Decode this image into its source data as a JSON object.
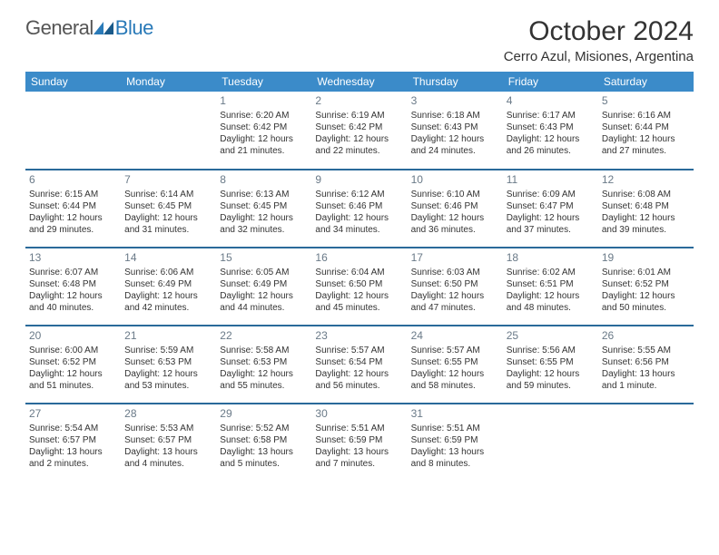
{
  "logo": {
    "text_general": "General",
    "text_blue": "Blue"
  },
  "header": {
    "month_title": "October 2024",
    "location": "Cerro Azul, Misiones, Argentina"
  },
  "colors": {
    "header_bg": "#3b8bc9",
    "row_divider": "#2a6a9a",
    "daynum": "#6a7a88",
    "text": "#333333",
    "logo_gray": "#555555",
    "logo_blue": "#2a7ab8"
  },
  "day_headers": [
    "Sunday",
    "Monday",
    "Tuesday",
    "Wednesday",
    "Thursday",
    "Friday",
    "Saturday"
  ],
  "weeks": [
    [
      null,
      null,
      {
        "n": "1",
        "sr": "Sunrise: 6:20 AM",
        "ss": "Sunset: 6:42 PM",
        "d1": "Daylight: 12 hours",
        "d2": "and 21 minutes."
      },
      {
        "n": "2",
        "sr": "Sunrise: 6:19 AM",
        "ss": "Sunset: 6:42 PM",
        "d1": "Daylight: 12 hours",
        "d2": "and 22 minutes."
      },
      {
        "n": "3",
        "sr": "Sunrise: 6:18 AM",
        "ss": "Sunset: 6:43 PM",
        "d1": "Daylight: 12 hours",
        "d2": "and 24 minutes."
      },
      {
        "n": "4",
        "sr": "Sunrise: 6:17 AM",
        "ss": "Sunset: 6:43 PM",
        "d1": "Daylight: 12 hours",
        "d2": "and 26 minutes."
      },
      {
        "n": "5",
        "sr": "Sunrise: 6:16 AM",
        "ss": "Sunset: 6:44 PM",
        "d1": "Daylight: 12 hours",
        "d2": "and 27 minutes."
      }
    ],
    [
      {
        "n": "6",
        "sr": "Sunrise: 6:15 AM",
        "ss": "Sunset: 6:44 PM",
        "d1": "Daylight: 12 hours",
        "d2": "and 29 minutes."
      },
      {
        "n": "7",
        "sr": "Sunrise: 6:14 AM",
        "ss": "Sunset: 6:45 PM",
        "d1": "Daylight: 12 hours",
        "d2": "and 31 minutes."
      },
      {
        "n": "8",
        "sr": "Sunrise: 6:13 AM",
        "ss": "Sunset: 6:45 PM",
        "d1": "Daylight: 12 hours",
        "d2": "and 32 minutes."
      },
      {
        "n": "9",
        "sr": "Sunrise: 6:12 AM",
        "ss": "Sunset: 6:46 PM",
        "d1": "Daylight: 12 hours",
        "d2": "and 34 minutes."
      },
      {
        "n": "10",
        "sr": "Sunrise: 6:10 AM",
        "ss": "Sunset: 6:46 PM",
        "d1": "Daylight: 12 hours",
        "d2": "and 36 minutes."
      },
      {
        "n": "11",
        "sr": "Sunrise: 6:09 AM",
        "ss": "Sunset: 6:47 PM",
        "d1": "Daylight: 12 hours",
        "d2": "and 37 minutes."
      },
      {
        "n": "12",
        "sr": "Sunrise: 6:08 AM",
        "ss": "Sunset: 6:48 PM",
        "d1": "Daylight: 12 hours",
        "d2": "and 39 minutes."
      }
    ],
    [
      {
        "n": "13",
        "sr": "Sunrise: 6:07 AM",
        "ss": "Sunset: 6:48 PM",
        "d1": "Daylight: 12 hours",
        "d2": "and 40 minutes."
      },
      {
        "n": "14",
        "sr": "Sunrise: 6:06 AM",
        "ss": "Sunset: 6:49 PM",
        "d1": "Daylight: 12 hours",
        "d2": "and 42 minutes."
      },
      {
        "n": "15",
        "sr": "Sunrise: 6:05 AM",
        "ss": "Sunset: 6:49 PM",
        "d1": "Daylight: 12 hours",
        "d2": "and 44 minutes."
      },
      {
        "n": "16",
        "sr": "Sunrise: 6:04 AM",
        "ss": "Sunset: 6:50 PM",
        "d1": "Daylight: 12 hours",
        "d2": "and 45 minutes."
      },
      {
        "n": "17",
        "sr": "Sunrise: 6:03 AM",
        "ss": "Sunset: 6:50 PM",
        "d1": "Daylight: 12 hours",
        "d2": "and 47 minutes."
      },
      {
        "n": "18",
        "sr": "Sunrise: 6:02 AM",
        "ss": "Sunset: 6:51 PM",
        "d1": "Daylight: 12 hours",
        "d2": "and 48 minutes."
      },
      {
        "n": "19",
        "sr": "Sunrise: 6:01 AM",
        "ss": "Sunset: 6:52 PM",
        "d1": "Daylight: 12 hours",
        "d2": "and 50 minutes."
      }
    ],
    [
      {
        "n": "20",
        "sr": "Sunrise: 6:00 AM",
        "ss": "Sunset: 6:52 PM",
        "d1": "Daylight: 12 hours",
        "d2": "and 51 minutes."
      },
      {
        "n": "21",
        "sr": "Sunrise: 5:59 AM",
        "ss": "Sunset: 6:53 PM",
        "d1": "Daylight: 12 hours",
        "d2": "and 53 minutes."
      },
      {
        "n": "22",
        "sr": "Sunrise: 5:58 AM",
        "ss": "Sunset: 6:53 PM",
        "d1": "Daylight: 12 hours",
        "d2": "and 55 minutes."
      },
      {
        "n": "23",
        "sr": "Sunrise: 5:57 AM",
        "ss": "Sunset: 6:54 PM",
        "d1": "Daylight: 12 hours",
        "d2": "and 56 minutes."
      },
      {
        "n": "24",
        "sr": "Sunrise: 5:57 AM",
        "ss": "Sunset: 6:55 PM",
        "d1": "Daylight: 12 hours",
        "d2": "and 58 minutes."
      },
      {
        "n": "25",
        "sr": "Sunrise: 5:56 AM",
        "ss": "Sunset: 6:55 PM",
        "d1": "Daylight: 12 hours",
        "d2": "and 59 minutes."
      },
      {
        "n": "26",
        "sr": "Sunrise: 5:55 AM",
        "ss": "Sunset: 6:56 PM",
        "d1": "Daylight: 13 hours",
        "d2": "and 1 minute."
      }
    ],
    [
      {
        "n": "27",
        "sr": "Sunrise: 5:54 AM",
        "ss": "Sunset: 6:57 PM",
        "d1": "Daylight: 13 hours",
        "d2": "and 2 minutes."
      },
      {
        "n": "28",
        "sr": "Sunrise: 5:53 AM",
        "ss": "Sunset: 6:57 PM",
        "d1": "Daylight: 13 hours",
        "d2": "and 4 minutes."
      },
      {
        "n": "29",
        "sr": "Sunrise: 5:52 AM",
        "ss": "Sunset: 6:58 PM",
        "d1": "Daylight: 13 hours",
        "d2": "and 5 minutes."
      },
      {
        "n": "30",
        "sr": "Sunrise: 5:51 AM",
        "ss": "Sunset: 6:59 PM",
        "d1": "Daylight: 13 hours",
        "d2": "and 7 minutes."
      },
      {
        "n": "31",
        "sr": "Sunrise: 5:51 AM",
        "ss": "Sunset: 6:59 PM",
        "d1": "Daylight: 13 hours",
        "d2": "and 8 minutes."
      },
      null,
      null
    ]
  ]
}
